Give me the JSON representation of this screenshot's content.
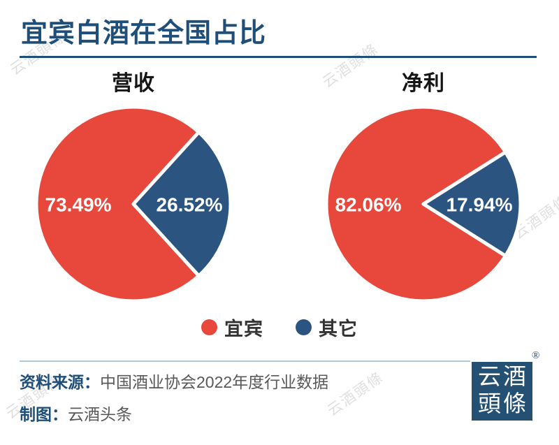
{
  "page": {
    "title": "宜宾白酒在全国占比"
  },
  "chart_data": [
    {
      "type": "pie",
      "title": "营收",
      "labels": [
        "宜宾",
        "其它"
      ],
      "values": [
        73.49,
        26.52
      ],
      "data_labels": [
        "73.49%",
        "26.52%"
      ],
      "colors": [
        "#E8473C",
        "#2B5580"
      ],
      "legend_position": "bottom"
    },
    {
      "type": "pie",
      "title": "净利",
      "labels": [
        "宜宾",
        "其它"
      ],
      "values": [
        82.06,
        17.94
      ],
      "data_labels": [
        "82.06%",
        "17.94%"
      ],
      "colors": [
        "#E8473C",
        "#2B5580"
      ],
      "legend_position": "bottom"
    }
  ],
  "legend": {
    "items": [
      {
        "label": "宜宾",
        "color": "#E8473C"
      },
      {
        "label": "其它",
        "color": "#2B5580"
      }
    ]
  },
  "footer": {
    "source_label": "资料来源：",
    "source_text": "中国酒业协会2022年度行业数据",
    "credit_label": "制图：",
    "credit_text": "云酒头条"
  },
  "logo": {
    "line1": "云酒",
    "line2": "頭條",
    "registered": "®"
  },
  "watermark_text": "云酒頭條",
  "colors": {
    "accent_red": "#E8473C",
    "accent_blue": "#2B5580",
    "title_blue": "#1F4E79",
    "divider_blue": "#AFC8DC",
    "text_gray": "#595959",
    "logo_navy": "#235073"
  }
}
